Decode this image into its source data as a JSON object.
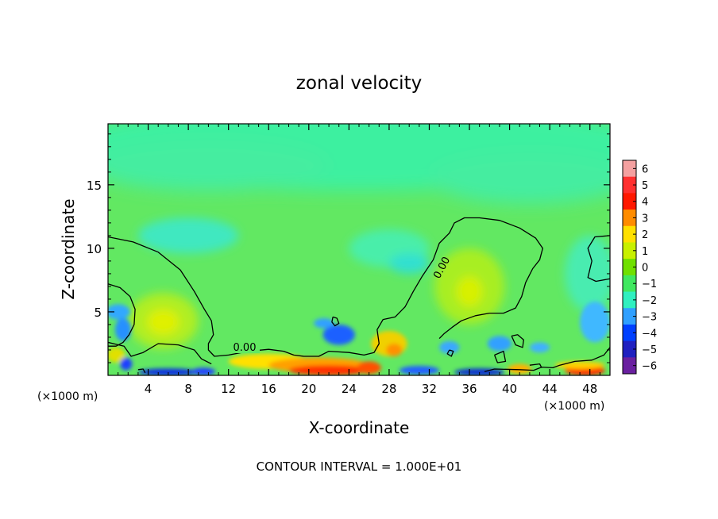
{
  "chart_data": {
    "type": "heatmap",
    "title": "zonal velocity",
    "xlabel": "X-coordinate",
    "ylabel": "Z-coordinate",
    "x_unit_label": "(×1000 m)",
    "x_tick_labels": [
      "4",
      "8",
      "12",
      "16",
      "20",
      "24",
      "28",
      "32",
      "36",
      "40",
      "44",
      "48"
    ],
    "x_ticks": [
      4,
      8,
      12,
      16,
      20,
      24,
      28,
      32,
      36,
      40,
      44,
      48
    ],
    "xlim": [
      0,
      50
    ],
    "y_tick_labels": [
      "5",
      "10",
      "15"
    ],
    "y_ticks": [
      5,
      10,
      15
    ],
    "ylim": [
      0,
      19.8
    ],
    "footer": "CONTOUR INTERVAL = 1.000E+01",
    "contour_label": "0.00",
    "colorbar": {
      "levels": [
        6,
        5,
        4,
        3,
        2,
        1,
        0,
        -1,
        -2,
        -3,
        -4,
        -5,
        -6
      ],
      "labels": [
        "6",
        "5",
        "4",
        "3",
        "2",
        "1",
        "0",
        "−1",
        "−2",
        "−3",
        "−4",
        "−5",
        "−6"
      ],
      "colors": [
        "#f4a0a0",
        "#ff3030",
        "#ff1800",
        "#ff8c00",
        "#ffe000",
        "#c8f000",
        "#70e000",
        "#40e860",
        "#30f0c0",
        "#30a0ff",
        "#0040ff",
        "#2020c0",
        "#6a20a0"
      ]
    },
    "background_color": "#62e862",
    "regions": [
      {
        "kind": "upper",
        "color": "#3ef0a0",
        "cx": 25,
        "cy": 18,
        "rx": 30,
        "ry": 3.5
      },
      {
        "kind": "upper",
        "color": "#45eda0",
        "cx": 10,
        "cy": 16.5,
        "rx": 12,
        "ry": 2
      },
      {
        "kind": "upper",
        "color": "#45eda0",
        "cx": 42,
        "cy": 15.5,
        "rx": 10,
        "ry": 2
      },
      {
        "kind": "mid",
        "color": "#4aeeaa",
        "cx": 28,
        "cy": 10,
        "rx": 4,
        "ry": 1.5
      },
      {
        "kind": "mid",
        "color": "#30e0d0",
        "cx": 30,
        "cy": 8.8,
        "rx": 2,
        "ry": 0.8
      },
      {
        "kind": "mid",
        "color": "#40e8c0",
        "cx": 8,
        "cy": 11,
        "rx": 5,
        "ry": 1.4
      },
      {
        "kind": "mid",
        "color": "#48ecb0",
        "cx": 48,
        "cy": 8,
        "rx": 2.5,
        "ry": 3
      },
      {
        "kind": "mid",
        "color": "#a8ee20",
        "cx": 36,
        "cy": 7,
        "rx": 3.5,
        "ry": 3
      },
      {
        "kind": "mid",
        "color": "#d8f000",
        "cx": 36,
        "cy": 6.6,
        "rx": 1.3,
        "ry": 1.2
      },
      {
        "kind": "mid",
        "color": "#b0ee20",
        "cx": 5.5,
        "cy": 4.3,
        "rx": 3.5,
        "ry": 2.2
      },
      {
        "kind": "mid",
        "color": "#e0f000",
        "cx": 5.5,
        "cy": 4.2,
        "rx": 1.6,
        "ry": 1
      },
      {
        "kind": "low",
        "color": "#30a8ff",
        "cx": 1,
        "cy": 5,
        "rx": 1.2,
        "ry": 0.6
      },
      {
        "kind": "low",
        "color": "#2890ff",
        "cx": 1.5,
        "cy": 3.6,
        "rx": 0.8,
        "ry": 0.9
      },
      {
        "kind": "low",
        "color": "#1a60ff",
        "cx": 23,
        "cy": 3.2,
        "rx": 1.6,
        "ry": 0.8
      },
      {
        "kind": "low",
        "color": "#30a0ff",
        "cx": 21.5,
        "cy": 4.1,
        "rx": 1,
        "ry": 0.4
      },
      {
        "kind": "low",
        "color": "#40b8ff",
        "cx": 48.5,
        "cy": 4.2,
        "rx": 1.5,
        "ry": 1.6
      },
      {
        "kind": "low",
        "color": "#30a0ff",
        "cx": 39,
        "cy": 2.5,
        "rx": 1.2,
        "ry": 0.6
      },
      {
        "kind": "low",
        "color": "#3aa8ff",
        "cx": 34,
        "cy": 2.2,
        "rx": 1,
        "ry": 0.5
      },
      {
        "kind": "low",
        "color": "#40b0ff",
        "cx": 43,
        "cy": 2.2,
        "rx": 1,
        "ry": 0.4
      },
      {
        "kind": "low",
        "color": "#f0d000",
        "cx": 28,
        "cy": 2.5,
        "rx": 1.8,
        "ry": 1
      },
      {
        "kind": "low",
        "color": "#ff9000",
        "cx": 28.5,
        "cy": 2,
        "rx": 0.8,
        "ry": 0.5
      },
      {
        "kind": "low",
        "color": "#e0e000",
        "cx": 0.8,
        "cy": 1.6,
        "rx": 0.9,
        "ry": 0.6
      },
      {
        "kind": "low",
        "color": "#1e40ff",
        "cx": 1.8,
        "cy": 0.9,
        "rx": 0.6,
        "ry": 0.5
      },
      {
        "kind": "low",
        "color": "#ffe000",
        "cx": 16,
        "cy": 1.1,
        "rx": 4,
        "ry": 0.6
      },
      {
        "kind": "low",
        "color": "#ffa000",
        "cx": 21,
        "cy": 0.8,
        "rx": 5,
        "ry": 0.6
      },
      {
        "kind": "low",
        "color": "#ff3000",
        "cx": 22,
        "cy": 0.4,
        "rx": 4,
        "ry": 0.4
      },
      {
        "kind": "low",
        "color": "#ff5000",
        "cx": 26,
        "cy": 0.6,
        "rx": 1.2,
        "ry": 0.5
      },
      {
        "kind": "low",
        "color": "#1030e0",
        "cx": 6,
        "cy": 0.25,
        "rx": 3,
        "ry": 0.3
      },
      {
        "kind": "low",
        "color": "#2040ff",
        "cx": 9.5,
        "cy": 0.3,
        "rx": 1.2,
        "ry": 0.3
      },
      {
        "kind": "low",
        "color": "#2060ff",
        "cx": 31,
        "cy": 0.4,
        "rx": 2,
        "ry": 0.35
      },
      {
        "kind": "low",
        "color": "#1030d0",
        "cx": 37,
        "cy": 0.25,
        "rx": 2.5,
        "ry": 0.3
      },
      {
        "kind": "low",
        "color": "#ffb000",
        "cx": 41,
        "cy": 0.5,
        "rx": 1.2,
        "ry": 0.4
      },
      {
        "kind": "low",
        "color": "#ff2000",
        "cx": 47.5,
        "cy": 0.4,
        "rx": 2,
        "ry": 0.4
      },
      {
        "kind": "low",
        "color": "#ffd000",
        "cx": 47,
        "cy": 0.8,
        "rx": 2.5,
        "ry": 0.3
      }
    ],
    "contours": [
      {
        "points": [
          [
            0,
            10.9
          ],
          [
            2.5,
            10.5
          ],
          [
            5,
            9.7
          ],
          [
            7.2,
            8.3
          ],
          [
            8.6,
            6.6
          ],
          [
            9.6,
            5.2
          ],
          [
            10.3,
            4.3
          ],
          [
            10.5,
            3.2
          ],
          [
            10,
            2.5
          ],
          [
            10,
            2
          ],
          [
            10.6,
            1.5
          ],
          [
            12,
            1.6
          ],
          [
            14,
            1.9
          ],
          [
            16,
            2.05
          ],
          [
            17.5,
            1.9
          ],
          [
            18.5,
            1.6
          ],
          [
            19.5,
            1.5
          ],
          [
            21,
            1.5
          ],
          [
            22,
            1.9
          ],
          [
            24,
            1.8
          ],
          [
            25.5,
            1.6
          ],
          [
            26.5,
            1.8
          ],
          [
            27,
            2.5
          ],
          [
            26.8,
            3.6
          ],
          [
            27.4,
            4.4
          ],
          [
            28.6,
            4.6
          ],
          [
            29.6,
            5.4
          ],
          [
            30.4,
            6.6
          ],
          [
            31.3,
            7.8
          ],
          [
            32.4,
            9.1
          ],
          [
            33,
            10.4
          ],
          [
            34,
            11.2
          ],
          [
            34.5,
            12
          ],
          [
            35.5,
            12.4
          ],
          [
            37,
            12.4
          ],
          [
            39,
            12.2
          ],
          [
            41,
            11.6
          ],
          [
            42.6,
            10.8
          ],
          [
            43.3,
            10
          ],
          [
            43,
            9.1
          ],
          [
            42.3,
            8.4
          ],
          [
            41.6,
            7.3
          ],
          [
            41.2,
            6.2
          ],
          [
            40.6,
            5.3
          ],
          [
            39.4,
            4.9
          ],
          [
            38,
            4.9
          ],
          [
            36.6,
            4.7
          ],
          [
            35.2,
            4.3
          ],
          [
            34.3,
            3.8
          ],
          [
            33.5,
            3.3
          ],
          [
            33,
            2.9
          ]
        ]
      },
      {
        "points": [
          [
            0,
            7.2
          ],
          [
            1.2,
            6.9
          ],
          [
            2.2,
            6.2
          ],
          [
            2.7,
            5.2
          ],
          [
            2.6,
            4
          ],
          [
            2.1,
            3.2
          ],
          [
            1.5,
            2.6
          ],
          [
            0.8,
            2.3
          ],
          [
            0,
            2.3
          ]
        ]
      },
      {
        "points": [
          [
            0,
            2.6
          ],
          [
            1.6,
            2.3
          ],
          [
            2.3,
            1.5
          ],
          [
            3.5,
            1.8
          ],
          [
            5,
            2.5
          ],
          [
            7,
            2.4
          ],
          [
            8.6,
            2
          ],
          [
            9.3,
            1.3
          ],
          [
            10.3,
            0.9
          ]
        ]
      },
      {
        "points": [
          [
            50,
            11
          ],
          [
            48.5,
            10.9
          ],
          [
            47.8,
            10
          ],
          [
            48.2,
            9
          ],
          [
            47.8,
            7.7
          ],
          [
            48.6,
            7.4
          ],
          [
            50,
            7.6
          ]
        ]
      },
      {
        "points": [
          [
            50,
            2.2
          ],
          [
            49.4,
            1.6
          ],
          [
            48.2,
            1.2
          ],
          [
            46.5,
            1.1
          ],
          [
            45,
            0.8
          ],
          [
            44.3,
            0.6
          ],
          [
            43.2,
            0.65
          ],
          [
            42.4,
            0.4
          ],
          [
            41,
            0.45
          ],
          [
            38.5,
            0.5
          ],
          [
            37.5,
            0.3
          ]
        ]
      },
      {
        "points": [
          [
            22.4,
            4.6
          ],
          [
            22.8,
            4.5
          ],
          [
            23,
            4.1
          ],
          [
            22.6,
            3.9
          ],
          [
            22.3,
            4.2
          ],
          [
            22.4,
            4.6
          ]
        ]
      },
      {
        "points": [
          [
            34,
            2.0
          ],
          [
            34.4,
            1.9
          ],
          [
            34.2,
            1.5
          ],
          [
            33.8,
            1.7
          ],
          [
            34,
            2.0
          ]
        ]
      },
      {
        "points": [
          [
            38.5,
            1.6
          ],
          [
            39.4,
            1.9
          ],
          [
            39.6,
            1.1
          ],
          [
            38.8,
            1
          ],
          [
            38.5,
            1.6
          ]
        ]
      },
      {
        "points": [
          [
            40.2,
            3.1
          ],
          [
            40.8,
            3.2
          ],
          [
            41.4,
            2.8
          ],
          [
            41.3,
            2.2
          ],
          [
            40.6,
            2.4
          ],
          [
            40.2,
            3.1
          ]
        ]
      },
      {
        "points": [
          [
            42,
            0.8
          ],
          [
            43,
            0.9
          ],
          [
            43.2,
            0.6
          ]
        ]
      },
      {
        "points": [
          [
            3,
            0.45
          ],
          [
            3.5,
            0.5
          ],
          [
            3.7,
            0.2
          ]
        ]
      }
    ]
  }
}
